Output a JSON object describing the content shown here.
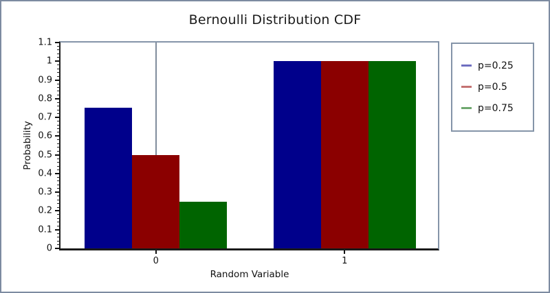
{
  "window": {
    "background": "#ffffff",
    "border_color": "#7d8ba1"
  },
  "chart_data": {
    "type": "bar",
    "title": "Bernoulli Distribution CDF",
    "xlabel": "Random Variable",
    "ylabel": "Probability",
    "categories": [
      "0",
      "1"
    ],
    "series": [
      {
        "name": "p=0.25",
        "bar_color": "#00008b",
        "legend_color": "#6e6ec0",
        "values": [
          0.75,
          1
        ]
      },
      {
        "name": "p=0.5",
        "bar_color": "#8b0000",
        "legend_color": "#c47272",
        "values": [
          0.5,
          1
        ]
      },
      {
        "name": "p=0.75",
        "bar_color": "#006400",
        "legend_color": "#6fa86f",
        "values": [
          0.25,
          1
        ]
      }
    ],
    "ylim": [
      0,
      1.1
    ],
    "y_tick_labels": [
      "0",
      "0.1",
      "0.2",
      "0.3",
      "0.4",
      "0.5",
      "0.6",
      "0.7",
      "0.8",
      "0.9",
      "1",
      "1.1"
    ],
    "y_minor_tick_step": 0.02,
    "legend_position": "right",
    "grid": "off",
    "origin_line_at_category": "0",
    "axis_colors": {
      "left_bottom_spines": "#1a1a1a",
      "top_right_spines": "#8494a8",
      "origin_line": "#808c9c"
    }
  }
}
